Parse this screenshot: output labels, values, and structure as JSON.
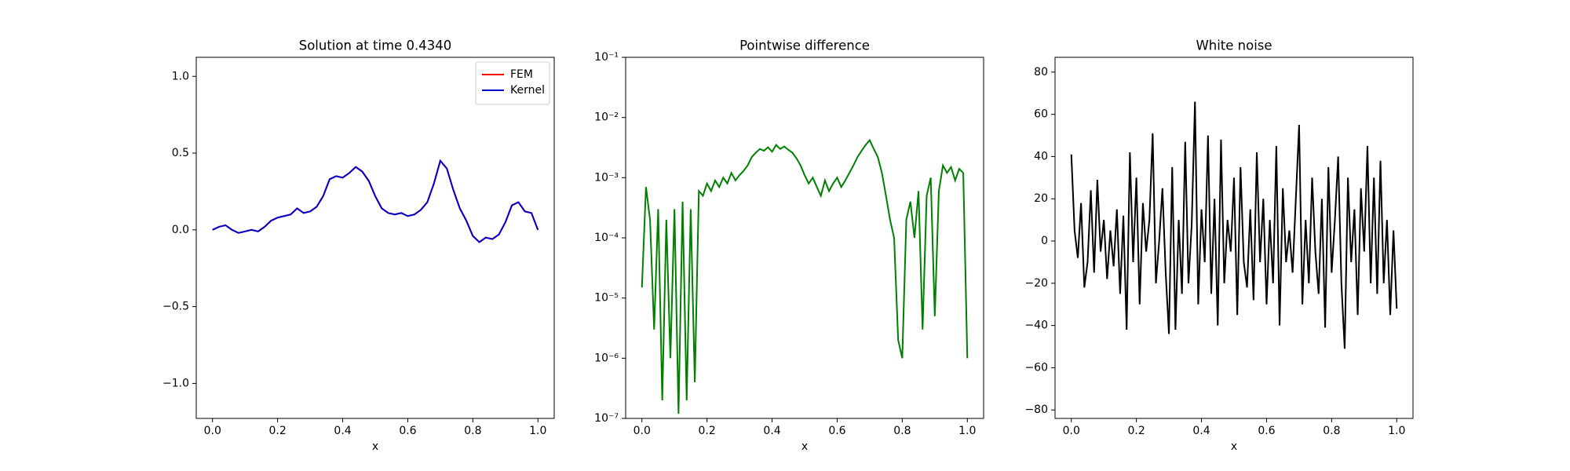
{
  "chart_data": [
    {
      "type": "line",
      "title": "Solution at time 0.4340",
      "x_label": "x",
      "x": [
        0,
        0.02,
        0.04,
        0.06,
        0.08,
        0.1,
        0.12,
        0.14,
        0.16,
        0.18,
        0.2,
        0.22,
        0.24,
        0.26,
        0.28,
        0.3,
        0.32,
        0.34,
        0.36,
        0.38,
        0.4,
        0.42,
        0.44,
        0.46,
        0.48,
        0.5,
        0.52,
        0.54,
        0.56,
        0.58,
        0.6,
        0.62,
        0.64,
        0.66,
        0.68,
        0.7,
        0.72,
        0.74,
        0.76,
        0.78,
        0.8,
        0.82,
        0.84,
        0.86,
        0.88,
        0.9,
        0.92,
        0.94,
        0.96,
        0.98,
        1.0
      ],
      "series": [
        {
          "name": "FEM",
          "color": "#ff0000",
          "values": [
            0,
            0.02,
            0.03,
            0.0,
            -0.02,
            -0.01,
            0.0,
            -0.01,
            0.02,
            0.06,
            0.08,
            0.09,
            0.1,
            0.14,
            0.11,
            0.12,
            0.15,
            0.22,
            0.33,
            0.35,
            0.34,
            0.37,
            0.41,
            0.38,
            0.32,
            0.22,
            0.14,
            0.11,
            0.1,
            0.11,
            0.09,
            0.1,
            0.13,
            0.18,
            0.3,
            0.45,
            0.4,
            0.26,
            0.14,
            0.06,
            -0.04,
            -0.08,
            -0.05,
            -0.06,
            -0.03,
            0.05,
            0.16,
            0.18,
            0.12,
            0.11,
            0.0
          ]
        },
        {
          "name": "Kernel",
          "color": "#0000cc",
          "values": [
            0,
            0.02,
            0.03,
            0.0,
            -0.02,
            -0.01,
            0.0,
            -0.01,
            0.02,
            0.06,
            0.08,
            0.09,
            0.1,
            0.14,
            0.11,
            0.12,
            0.15,
            0.22,
            0.33,
            0.35,
            0.34,
            0.37,
            0.41,
            0.38,
            0.32,
            0.22,
            0.14,
            0.11,
            0.1,
            0.11,
            0.09,
            0.1,
            0.13,
            0.18,
            0.3,
            0.45,
            0.4,
            0.26,
            0.14,
            0.06,
            -0.04,
            -0.08,
            -0.05,
            -0.06,
            -0.03,
            0.05,
            0.16,
            0.18,
            0.12,
            0.11,
            0.0
          ]
        }
      ],
      "xlim": [
        -0.05,
        1.05
      ],
      "xticks": [
        {
          "value": 0,
          "label": "0.0"
        },
        0.2,
        0.4,
        0.6,
        0.8,
        {
          "value": 1,
          "label": "1.0"
        }
      ],
      "ylim": [
        -1.228,
        1.124
      ],
      "yticks": [
        {
          "value": -1,
          "label": "−1.0"
        },
        {
          "value": -0.5,
          "label": "−0.5"
        },
        {
          "value": 0,
          "label": "0.0"
        },
        0.5,
        {
          "value": 1,
          "label": "1.0"
        }
      ],
      "legend": "upper right"
    },
    {
      "type": "line",
      "title": "Pointwise difference",
      "x_label": "x",
      "log_y": true,
      "x": [
        0,
        0.0125,
        0.025,
        0.0375,
        0.05,
        0.0625,
        0.075,
        0.0875,
        0.1,
        0.1125,
        0.125,
        0.1375,
        0.15,
        0.1625,
        0.175,
        0.1875,
        0.2,
        0.2125,
        0.225,
        0.2375,
        0.25,
        0.2625,
        0.275,
        0.2875,
        0.3,
        0.3125,
        0.325,
        0.3375,
        0.35,
        0.3625,
        0.375,
        0.3875,
        0.4,
        0.4125,
        0.425,
        0.4375,
        0.45,
        0.4625,
        0.475,
        0.4875,
        0.5,
        0.5125,
        0.525,
        0.5375,
        0.55,
        0.5625,
        0.575,
        0.5875,
        0.6,
        0.6125,
        0.625,
        0.6375,
        0.65,
        0.6625,
        0.675,
        0.6875,
        0.7,
        0.7125,
        0.725,
        0.7375,
        0.75,
        0.7625,
        0.775,
        0.7875,
        0.8,
        0.8125,
        0.825,
        0.8375,
        0.85,
        0.8625,
        0.875,
        0.8875,
        0.9,
        0.9125,
        0.925,
        0.9375,
        0.95,
        0.9625,
        0.975,
        0.9875,
        1.0
      ],
      "series": [
        {
          "name": "difference",
          "color": "#008000",
          "values": [
            1.5e-05,
            0.0007,
            0.0002,
            3e-06,
            0.0003,
            2e-07,
            0.0002,
            1e-06,
            0.0003,
            1.2e-07,
            0.0004,
            2e-07,
            0.0003,
            4e-07,
            0.0006,
            0.0005,
            0.0008,
            0.0006,
            0.0009,
            0.0007,
            0.001,
            0.0008,
            0.0012,
            0.0009,
            0.0011,
            0.0013,
            0.0016,
            0.0022,
            0.0026,
            0.003,
            0.0028,
            0.0032,
            0.0027,
            0.0035,
            0.003,
            0.0033,
            0.0029,
            0.0026,
            0.0021,
            0.0016,
            0.0011,
            0.0008,
            0.001,
            0.0007,
            0.0005,
            0.0009,
            0.0006,
            0.0008,
            0.001,
            0.0007,
            0.0009,
            0.0012,
            0.0016,
            0.0022,
            0.0028,
            0.0035,
            0.0042,
            0.003,
            0.0022,
            0.0012,
            0.0005,
            0.0002,
            0.0001,
            2e-06,
            1e-06,
            0.0002,
            0.0004,
            0.0001,
            0.0006,
            3e-06,
            0.0005,
            0.001,
            5e-06,
            0.0006,
            0.0016,
            0.0012,
            0.0015,
            0.0009,
            0.0014,
            0.0012,
            1e-06
          ]
        }
      ],
      "xlim": [
        -0.05,
        1.05
      ],
      "xticks": [
        {
          "value": 0,
          "label": "0.0"
        },
        0.2,
        0.4,
        0.6,
        0.8,
        {
          "value": 1,
          "label": "1.0"
        }
      ],
      "ylim": [
        1e-07,
        0.1
      ],
      "yticks": [
        {
          "value": 1e-07,
          "label": "10⁻⁷"
        },
        {
          "value": 1e-06,
          "label": "10⁻⁶"
        },
        {
          "value": 1e-05,
          "label": "10⁻⁵"
        },
        {
          "value": 0.0001,
          "label": "10⁻⁴"
        },
        {
          "value": 0.001,
          "label": "10⁻³"
        },
        {
          "value": 0.01,
          "label": "10⁻²"
        },
        {
          "value": 0.1,
          "label": "10⁻¹"
        }
      ]
    },
    {
      "type": "line",
      "title": "White noise",
      "x_label": "x",
      "x": [
        0,
        0.01,
        0.02,
        0.03,
        0.04,
        0.05,
        0.06,
        0.07,
        0.08,
        0.09,
        0.1,
        0.11,
        0.12,
        0.13,
        0.14,
        0.15,
        0.16,
        0.17,
        0.18,
        0.19,
        0.2,
        0.21,
        0.22,
        0.23,
        0.24,
        0.25,
        0.26,
        0.27,
        0.28,
        0.29,
        0.3,
        0.31,
        0.32,
        0.33,
        0.34,
        0.35,
        0.36,
        0.37,
        0.38,
        0.39,
        0.4,
        0.41,
        0.42,
        0.43,
        0.44,
        0.45,
        0.46,
        0.47,
        0.48,
        0.49,
        0.5,
        0.51,
        0.52,
        0.53,
        0.54,
        0.55,
        0.56,
        0.57,
        0.58,
        0.59,
        0.6,
        0.61,
        0.62,
        0.63,
        0.64,
        0.65,
        0.66,
        0.67,
        0.68,
        0.69,
        0.7,
        0.71,
        0.72,
        0.73,
        0.74,
        0.75,
        0.76,
        0.77,
        0.78,
        0.79,
        0.8,
        0.81,
        0.82,
        0.83,
        0.84,
        0.85,
        0.86,
        0.87,
        0.88,
        0.89,
        0.9,
        0.91,
        0.92,
        0.93,
        0.94,
        0.95,
        0.96,
        0.97,
        0.98,
        0.99,
        1.0
      ],
      "series": [
        {
          "name": "noise",
          "color": "#000000",
          "values": [
            41,
            5,
            -8,
            18,
            -22,
            -10,
            24,
            -15,
            29,
            -5,
            10,
            -18,
            5,
            -12,
            15,
            -25,
            12,
            -42,
            42,
            -10,
            30,
            -30,
            18,
            -5,
            10,
            51,
            -20,
            0,
            25,
            -15,
            -44,
            35,
            -42,
            10,
            -25,
            47,
            -20,
            8,
            66,
            -30,
            15,
            -10,
            50,
            -25,
            20,
            -40,
            48,
            -20,
            10,
            -5,
            30,
            -35,
            35,
            -10,
            -22,
            15,
            -28,
            42,
            -10,
            20,
            -30,
            10,
            -20,
            45,
            -40,
            25,
            -10,
            5,
            -15,
            20,
            55,
            -30,
            10,
            -20,
            30,
            -5,
            -25,
            20,
            -41,
            35,
            -15,
            10,
            40,
            -20,
            -51,
            30,
            -10,
            15,
            -35,
            25,
            -5,
            45,
            -20,
            30,
            -25,
            38,
            -20,
            10,
            -35,
            5,
            -32
          ]
        }
      ],
      "xlim": [
        -0.05,
        1.05
      ],
      "xticks": [
        {
          "value": 0,
          "label": "0.0"
        },
        0.2,
        0.4,
        0.6,
        0.8,
        {
          "value": 1,
          "label": "1.0"
        }
      ],
      "ylim": [
        -84,
        87
      ],
      "yticks": [
        {
          "value": -80,
          "label": "−80"
        },
        {
          "value": -60,
          "label": "−60"
        },
        {
          "value": -40,
          "label": "−40"
        },
        {
          "value": -20,
          "label": "−20"
        },
        0,
        20,
        40,
        60,
        80
      ]
    }
  ]
}
